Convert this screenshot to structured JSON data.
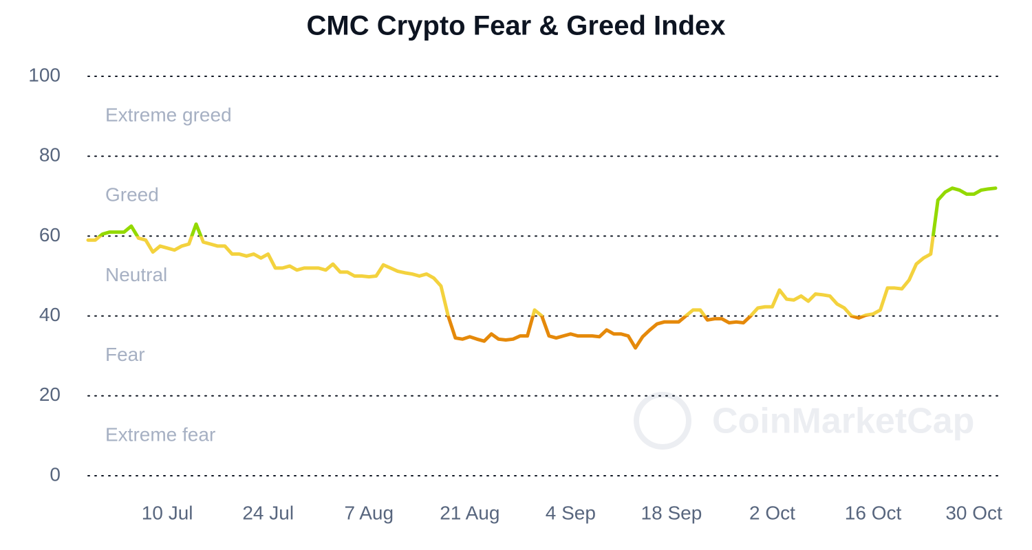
{
  "chart_data": {
    "type": "line",
    "title": "CMC Crypto Fear & Greed Index",
    "watermark": "CoinMarketCap",
    "categories": [
      null,
      null,
      null,
      null,
      null,
      null,
      null,
      null,
      null,
      null,
      null,
      "10 Jul",
      null,
      null,
      null,
      null,
      null,
      null,
      null,
      null,
      null,
      null,
      null,
      null,
      null,
      "24 Jul",
      null,
      null,
      null,
      null,
      null,
      null,
      null,
      null,
      null,
      null,
      null,
      null,
      null,
      "7 Aug",
      null,
      null,
      null,
      null,
      null,
      null,
      null,
      null,
      null,
      null,
      null,
      null,
      null,
      "21 Aug",
      null,
      null,
      null,
      null,
      null,
      null,
      null,
      null,
      null,
      null,
      null,
      null,
      null,
      "4 Sep",
      null,
      null,
      null,
      null,
      null,
      null,
      null,
      null,
      null,
      null,
      null,
      null,
      null,
      "18 Sep",
      null,
      null,
      null,
      null,
      null,
      null,
      null,
      null,
      null,
      null,
      null,
      null,
      null,
      "2 Oct",
      null,
      null,
      null,
      null,
      null,
      null,
      null,
      null,
      null,
      null,
      null,
      null,
      null,
      "16 Oct",
      null,
      null,
      null,
      null,
      null,
      null,
      null,
      null,
      null,
      null,
      null,
      null,
      null,
      "30 Oct",
      null,
      null,
      null
    ],
    "series": [
      {
        "name": "Fear & Greed Index",
        "values": [
          59,
          59,
          60.5,
          61,
          61,
          61,
          62.5,
          59.5,
          59,
          56,
          57.5,
          57,
          56.5,
          57.5,
          58,
          63,
          58.5,
          58,
          57.5,
          57.5,
          55.5,
          55.5,
          55,
          55.5,
          54.5,
          55.5,
          52,
          52,
          52.5,
          51.5,
          52,
          52,
          52,
          51.5,
          53,
          51,
          51,
          50,
          50,
          49.8,
          50,
          52.8,
          52,
          51.2,
          50.8,
          50.5,
          50,
          50.5,
          49.5,
          47.5,
          40,
          34.5,
          34.2,
          34.8,
          34.2,
          33.7,
          35.5,
          34.2,
          34,
          34.2,
          35,
          35,
          41.5,
          40,
          35,
          34.5,
          35,
          35.5,
          35,
          35,
          35,
          34.8,
          36.5,
          35.5,
          35.5,
          35,
          32,
          34.8,
          36.5,
          38,
          38.5,
          38.5,
          38.5,
          40,
          41.5,
          41.5,
          39,
          39.3,
          39.3,
          38.3,
          38.5,
          38.3,
          40,
          42,
          42.3,
          42.3,
          46.5,
          44.2,
          44,
          45,
          43.7,
          45.5,
          45.3,
          45,
          43,
          42,
          40,
          39.5,
          40.2,
          40.5,
          41.5,
          47,
          47,
          46.8,
          49,
          53,
          54.5,
          55.5,
          69,
          71,
          72,
          71.5,
          70.5,
          70.5,
          71.5,
          71.8,
          72
        ]
      }
    ],
    "bands": [
      {
        "label": "Extreme greed",
        "from": 80,
        "to": 100,
        "color": "#16c784"
      },
      {
        "label": "Greed",
        "from": 60,
        "to": 80,
        "color": "#93d900"
      },
      {
        "label": "Neutral",
        "from": 40,
        "to": 60,
        "color": "#f3d23e"
      },
      {
        "label": "Fear",
        "from": 20,
        "to": 40,
        "color": "#e5890a"
      },
      {
        "label": "Extreme fear",
        "from": 0,
        "to": 20,
        "color": "#ea3943"
      }
    ],
    "ylim": [
      0,
      100
    ],
    "yticks": [
      0,
      20,
      40,
      60,
      80,
      100
    ],
    "grid": true
  }
}
